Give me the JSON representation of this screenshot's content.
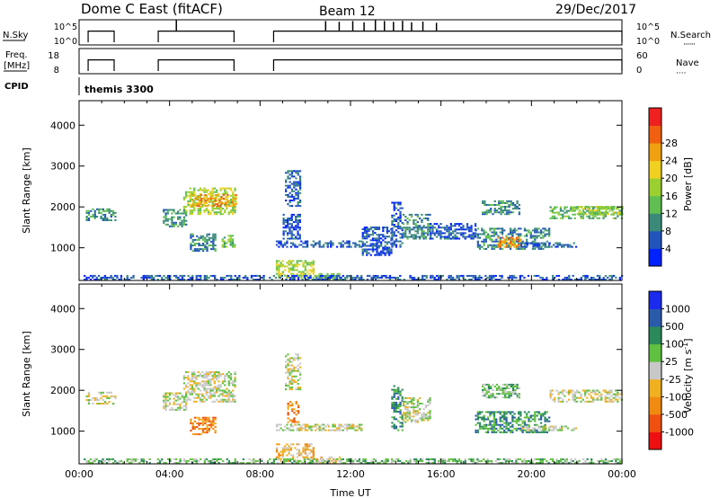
{
  "header": {
    "station": "Dome C East (fitACF)",
    "beam": "Beam 12",
    "date": "29/Dec/2017"
  },
  "chart_data": [
    {
      "type": "line",
      "panel": "noise",
      "left_label": "N.Sky",
      "right_label": "N.Search",
      "right_label_sub": "·······",
      "left_ticks": [
        "10^5",
        "10^0"
      ],
      "right_ticks": [
        "10^5",
        "10^0"
      ],
      "active_intervals_ut": [
        [
          0.4,
          1.55
        ],
        [
          3.5,
          6.85
        ],
        [
          8.6,
          24.0
        ]
      ],
      "level": 0.75,
      "spikes": [
        {
          "x": 4.3,
          "y": 0.98
        },
        {
          "x": 10.9,
          "y": 0.95
        },
        {
          "x": 11.5,
          "y": 0.92
        },
        {
          "x": 12.1,
          "y": 0.95
        },
        {
          "x": 12.6,
          "y": 0.9
        },
        {
          "x": 13.1,
          "y": 0.98
        },
        {
          "x": 13.5,
          "y": 0.95
        },
        {
          "x": 13.9,
          "y": 0.92
        },
        {
          "x": 14.3,
          "y": 0.96
        },
        {
          "x": 14.7,
          "y": 0.9
        },
        {
          "x": 15.2,
          "y": 0.93
        },
        {
          "x": 15.8,
          "y": 0.88
        }
      ]
    },
    {
      "type": "line",
      "panel": "frequency",
      "left_label_lines": [
        "Freq.",
        "[MHz]"
      ],
      "right_label": "Nave",
      "right_label_sub": "····",
      "left_ticks": [
        "18",
        "8"
      ],
      "right_ticks": [
        "60",
        "0"
      ],
      "active_intervals_ut": [
        [
          0.4,
          1.55
        ],
        [
          3.5,
          6.85
        ],
        [
          8.6,
          24.0
        ]
      ],
      "level": 12
    },
    {
      "type": "text",
      "panel": "cpid",
      "label": "CPID",
      "value": "themis 3300"
    },
    {
      "type": "heatmap",
      "panel": "power",
      "ylabel": "Slant Range [km]",
      "y_ticks": [
        "1000",
        "2000",
        "3000",
        "4000"
      ],
      "ylim": [
        200,
        4600
      ],
      "xlim": [
        0,
        24
      ],
      "colorbar": {
        "label": "Power [dB]",
        "ticks": [
          "4",
          "8",
          "12",
          "16",
          "20",
          "24",
          "28"
        ],
        "colors": [
          "#0022ff",
          "#2255bb",
          "#3a8a7a",
          "#5fbf50",
          "#9cd030",
          "#f0d020",
          "#f0a010",
          "#f06010",
          "#ee2020"
        ]
      },
      "regions": [
        {
          "x0": 0.3,
          "x1": 1.6,
          "y0": 1650,
          "y1": 1950,
          "c": 2
        },
        {
          "x0": 3.7,
          "x1": 4.7,
          "y0": 1500,
          "y1": 1950,
          "c": 2
        },
        {
          "x0": 4.6,
          "x1": 6.9,
          "y0": 1800,
          "y1": 2450,
          "c": 4
        },
        {
          "x0": 5.0,
          "x1": 6.9,
          "y0": 2000,
          "y1": 2300,
          "c": 6
        },
        {
          "x0": 4.9,
          "x1": 6.0,
          "y0": 900,
          "y1": 1350,
          "c": 2
        },
        {
          "x0": 6.3,
          "x1": 6.9,
          "y0": 1000,
          "y1": 1300,
          "c": 3
        },
        {
          "x0": 8.7,
          "x1": 11.0,
          "y0": 1000,
          "y1": 1150,
          "c": 1
        },
        {
          "x0": 9.1,
          "x1": 9.8,
          "y0": 2000,
          "y1": 2900,
          "c": 1
        },
        {
          "x0": 9.0,
          "x1": 9.8,
          "y0": 1200,
          "y1": 1800,
          "c": 1
        },
        {
          "x0": 8.7,
          "x1": 10.4,
          "y0": 250,
          "y1": 700,
          "c": 4
        },
        {
          "x0": 10.4,
          "x1": 11.5,
          "y0": 200,
          "y1": 350,
          "c": 3
        },
        {
          "x0": 11.0,
          "x1": 12.5,
          "y0": 1000,
          "y1": 1150,
          "c": 1
        },
        {
          "x0": 12.5,
          "x1": 13.8,
          "y0": 800,
          "y1": 1500,
          "c": 1
        },
        {
          "x0": 13.8,
          "x1": 14.3,
          "y0": 1000,
          "y1": 2100,
          "c": 1
        },
        {
          "x0": 14.3,
          "x1": 15.5,
          "y0": 1200,
          "y1": 1800,
          "c": 2
        },
        {
          "x0": 15.5,
          "x1": 17.5,
          "y0": 1200,
          "y1": 1600,
          "c": 1
        },
        {
          "x0": 17.5,
          "x1": 20.8,
          "y0": 950,
          "y1": 1450,
          "c": 2
        },
        {
          "x0": 18.5,
          "x1": 19.5,
          "y0": 1000,
          "y1": 1250,
          "c": 6
        },
        {
          "x0": 19.5,
          "x1": 22.0,
          "y0": 1000,
          "y1": 1100,
          "c": 1
        },
        {
          "x0": 17.8,
          "x1": 19.5,
          "y0": 1800,
          "y1": 2150,
          "c": 2
        },
        {
          "x0": 20.8,
          "x1": 24.0,
          "y0": 1700,
          "y1": 2000,
          "c": 3
        },
        {
          "x0": 22.0,
          "x1": 24.0,
          "y0": 1800,
          "y1": 2000,
          "c": 4
        },
        {
          "x0": 0.2,
          "x1": 24.0,
          "y0": 200,
          "y1": 320,
          "c": 1
        }
      ]
    },
    {
      "type": "heatmap",
      "panel": "velocity",
      "ylabel": "Slant Range [km]",
      "y_ticks": [
        "1000",
        "2000",
        "3000",
        "4000"
      ],
      "ylim": [
        200,
        4600
      ],
      "xlim": [
        0,
        24
      ],
      "x_ticks": [
        "00:00",
        "04:00",
        "08:00",
        "12:00",
        "16:00",
        "20:00",
        "00:00"
      ],
      "xlabel": "Time UT",
      "colorbar": {
        "label": "Velocity [m s",
        "label_sup": "-1",
        "label_end": "]",
        "ticks": [
          "-1000",
          "-500",
          "-100",
          "-25",
          "25",
          "100",
          "500",
          "1000"
        ],
        "colors": [
          "#ee1010",
          "#f05010",
          "#f08a10",
          "#f0b020",
          "#c8c8c8",
          "#60c040",
          "#2a8a5a",
          "#2a5aaa",
          "#1a2aee"
        ]
      },
      "regions": [
        {
          "x0": 0.3,
          "x1": 1.6,
          "y0": 1650,
          "y1": 1950,
          "c": 4
        },
        {
          "x0": 3.7,
          "x1": 4.7,
          "y0": 1500,
          "y1": 1950,
          "c": 4
        },
        {
          "x0": 4.6,
          "x1": 6.9,
          "y0": 1700,
          "y1": 2450,
          "c": 4
        },
        {
          "x0": 4.9,
          "x1": 6.0,
          "y0": 900,
          "y1": 1350,
          "c": 2
        },
        {
          "x0": 8.7,
          "x1": 11.0,
          "y0": 1000,
          "y1": 1150,
          "c": 4
        },
        {
          "x0": 9.1,
          "x1": 9.8,
          "y0": 2000,
          "y1": 2900,
          "c": 4
        },
        {
          "x0": 9.2,
          "x1": 9.7,
          "y0": 1200,
          "y1": 1700,
          "c": 2
        },
        {
          "x0": 8.7,
          "x1": 10.4,
          "y0": 250,
          "y1": 700,
          "c": 3
        },
        {
          "x0": 10.4,
          "x1": 11.5,
          "y0": 200,
          "y1": 350,
          "c": 3
        },
        {
          "x0": 11.0,
          "x1": 12.5,
          "y0": 1000,
          "y1": 1150,
          "c": 4
        },
        {
          "x0": 13.8,
          "x1": 14.3,
          "y0": 1000,
          "y1": 2100,
          "c": 6
        },
        {
          "x0": 14.3,
          "x1": 15.5,
          "y0": 1200,
          "y1": 1800,
          "c": 4
        },
        {
          "x0": 17.5,
          "x1": 20.8,
          "y0": 950,
          "y1": 1450,
          "c": 6
        },
        {
          "x0": 19.5,
          "x1": 22.0,
          "y0": 1000,
          "y1": 1100,
          "c": 4
        },
        {
          "x0": 17.8,
          "x1": 19.5,
          "y0": 1800,
          "y1": 2150,
          "c": 5
        },
        {
          "x0": 20.8,
          "x1": 24.0,
          "y0": 1700,
          "y1": 2000,
          "c": 4
        },
        {
          "x0": 0.2,
          "x1": 24.0,
          "y0": 200,
          "y1": 320,
          "c": 5
        }
      ]
    }
  ]
}
